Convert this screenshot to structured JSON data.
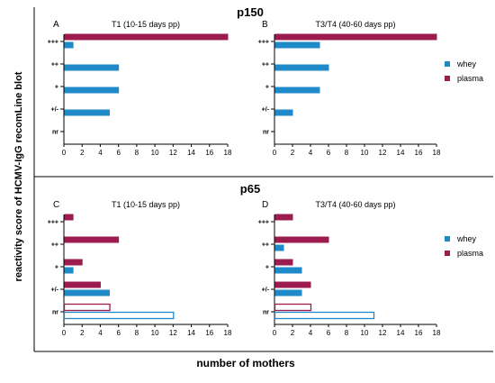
{
  "figure": {
    "ylabel": "reactivity score of HCMV-IgG recomLine blot",
    "xlabel": "number of mothers"
  },
  "colors": {
    "whey": "#1f8ac8",
    "plasma": "#9c1c4f"
  },
  "chart_data": [
    {
      "type": "bar",
      "orientation": "horizontal",
      "section": "p150",
      "letter": "A",
      "title": "T1 (10-15 days pp)",
      "categories": [
        "+++",
        "++",
        "+",
        "+/-",
        "nr"
      ],
      "xlim": [
        0,
        18
      ],
      "xticks": [
        0,
        2,
        4,
        6,
        8,
        10,
        12,
        14,
        16,
        18
      ],
      "legend": null,
      "series": [
        {
          "name": "whey",
          "values": [
            1,
            6,
            6,
            5,
            0
          ],
          "style": [
            "filled",
            "filled",
            "filled",
            "filled",
            "filled"
          ]
        },
        {
          "name": "plasma",
          "values": [
            18,
            0,
            0,
            0,
            0
          ],
          "style": [
            "filled",
            "filled",
            "filled",
            "filled",
            "filled"
          ]
        }
      ]
    },
    {
      "type": "bar",
      "orientation": "horizontal",
      "section": "p150",
      "letter": "B",
      "title": "T3/T4 (40-60 days pp)",
      "categories": [
        "+++",
        "++",
        "+",
        "+/-",
        "nr"
      ],
      "xlim": [
        0,
        18
      ],
      "xticks": [
        0,
        2,
        4,
        6,
        8,
        10,
        12,
        14,
        16,
        18
      ],
      "legend": "right",
      "series": [
        {
          "name": "whey",
          "values": [
            5,
            6,
            5,
            2,
            0
          ],
          "style": [
            "filled",
            "filled",
            "filled",
            "filled",
            "filled"
          ]
        },
        {
          "name": "plasma",
          "values": [
            18,
            0,
            0,
            0,
            0
          ],
          "style": [
            "filled",
            "filled",
            "filled",
            "filled",
            "filled"
          ]
        }
      ]
    },
    {
      "type": "bar",
      "orientation": "horizontal",
      "section": "p65",
      "letter": "C",
      "title": "T1 (10-15 days pp)",
      "categories": [
        "+++",
        "++",
        "+",
        "+/-",
        "nr"
      ],
      "xlim": [
        0,
        18
      ],
      "xticks": [
        0,
        2,
        4,
        6,
        8,
        10,
        12,
        14,
        16,
        18
      ],
      "legend": null,
      "series": [
        {
          "name": "whey",
          "values": [
            0,
            0,
            1,
            5,
            12
          ],
          "style": [
            "filled",
            "filled",
            "filled",
            "filled",
            "outline"
          ]
        },
        {
          "name": "plasma",
          "values": [
            1,
            6,
            2,
            4,
            5
          ],
          "style": [
            "filled",
            "filled",
            "filled",
            "filled",
            "outline"
          ]
        }
      ]
    },
    {
      "type": "bar",
      "orientation": "horizontal",
      "section": "p65",
      "letter": "D",
      "title": "T3/T4 (40-60 days pp)",
      "categories": [
        "+++",
        "++",
        "+",
        "+/-",
        "nr"
      ],
      "xlim": [
        0,
        18
      ],
      "xticks": [
        0,
        2,
        4,
        6,
        8,
        10,
        12,
        14,
        16,
        18
      ],
      "legend": "right",
      "series": [
        {
          "name": "whey",
          "values": [
            0,
            1,
            3,
            3,
            11
          ],
          "style": [
            "filled",
            "filled",
            "filled",
            "filled",
            "outline"
          ]
        },
        {
          "name": "plasma",
          "values": [
            2,
            6,
            2,
            4,
            4
          ],
          "style": [
            "filled",
            "filled",
            "filled",
            "filled",
            "outline"
          ]
        }
      ]
    }
  ]
}
